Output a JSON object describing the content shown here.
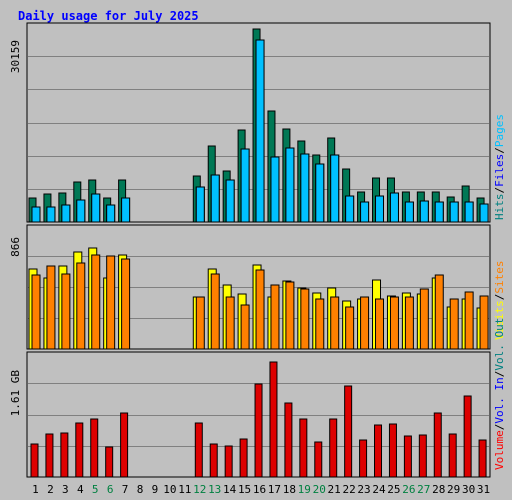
{
  "title": "Daily usage for July 2025",
  "chart_data": [
    {
      "type": "bar",
      "panel": "hits-files-pages",
      "max_label": "30159",
      "ylim": [
        0,
        30159
      ],
      "x": [
        "1",
        "2",
        "3",
        "4",
        "5",
        "6",
        "7",
        "8",
        "9",
        "10",
        "11",
        "12",
        "13",
        "14",
        "15",
        "16",
        "17",
        "18",
        "19",
        "20",
        "21",
        "22",
        "23",
        "24",
        "25",
        "26",
        "27",
        "28",
        "29",
        "30",
        "31"
      ],
      "legend": [
        {
          "text": "Hits",
          "color": "#008080"
        },
        {
          "text": "Files",
          "color": "#0000ff"
        },
        {
          "text": "Pages",
          "color": "#00c0ff"
        }
      ],
      "series": [
        {
          "name": "Hits",
          "color": "#007855",
          "values": [
            3700,
            4300,
            4500,
            6300,
            6600,
            3700,
            6600,
            0,
            0,
            0,
            0,
            7200,
            11800,
            8000,
            14300,
            30159,
            17400,
            14500,
            12700,
            10400,
            13200,
            8300,
            4700,
            6900,
            6900,
            4700,
            4700,
            4700,
            3900,
            5700,
            3800
          ]
        },
        {
          "name": "Files",
          "color": "#000080",
          "values": [
            2400,
            2300,
            2600,
            3500,
            4400,
            2600,
            3800,
            0,
            0,
            0,
            0,
            5500,
            7400,
            6600,
            11400,
            28500,
            10100,
            11600,
            10700,
            9100,
            10400,
            4100,
            3100,
            4100,
            4500,
            3100,
            3300,
            3200,
            3100,
            3200,
            2800
          ]
        },
        {
          "name": "Pages",
          "color": "#00c0ff",
          "values": [
            2400,
            2300,
            2600,
            3500,
            4400,
            2600,
            3800,
            0,
            0,
            0,
            0,
            5500,
            7400,
            6600,
            11400,
            28500,
            10100,
            11600,
            10700,
            9100,
            10400,
            4100,
            3100,
            4100,
            4500,
            3100,
            3300,
            3200,
            3100,
            3200,
            2800
          ]
        }
      ]
    },
    {
      "type": "bar",
      "panel": "visits-sites",
      "max_label": "866",
      "ylim": [
        0,
        866
      ],
      "legend": [
        {
          "text": "Visits",
          "color": "#ffff00"
        },
        {
          "text": "Sites",
          "color": "#ff8000"
        }
      ],
      "series": [
        {
          "name": "Visits",
          "color": "#ffff00",
          "values": [
            590,
            520,
            610,
            710,
            740,
            520,
            690,
            0,
            0,
            0,
            0,
            380,
            590,
            470,
            400,
            620,
            380,
            500,
            450,
            410,
            450,
            350,
            370,
            510,
            390,
            410,
            400,
            520,
            310,
            370,
            300
          ]
        },
        {
          "name": "Sites",
          "color": "#ff8000",
          "values": [
            540,
            610,
            550,
            630,
            690,
            680,
            660,
            0,
            0,
            0,
            0,
            380,
            550,
            380,
            320,
            580,
            470,
            490,
            440,
            370,
            380,
            310,
            380,
            370,
            380,
            380,
            440,
            540,
            370,
            420,
            390
          ]
        }
      ]
    },
    {
      "type": "bar",
      "panel": "volume",
      "max_label": "1.61 GB",
      "ylim": [
        0,
        1.61
      ],
      "legend": [
        {
          "text": "Volume",
          "color": "#ff0000"
        },
        {
          "text": "Vol. In",
          "color": "#0000ff"
        },
        {
          "text": "Vol. Out",
          "color": "#008080"
        }
      ],
      "series": [
        {
          "name": "Volume",
          "color": "#dd0000",
          "values": [
            0.44,
            0.58,
            0.6,
            0.73,
            0.78,
            0.4,
            0.86,
            0,
            0,
            0,
            0,
            0.73,
            0.44,
            0.42,
            0.52,
            1.26,
            1.56,
            1.0,
            0.79,
            0.47,
            0.78,
            1.23,
            0.5,
            0.7,
            0.72,
            0.56,
            0.57,
            0.86,
            0.58,
            1.1,
            0.5
          ]
        }
      ]
    }
  ],
  "weekend_days": [
    5,
    6,
    12,
    13,
    19,
    20,
    26,
    27
  ],
  "colors": {
    "weekday": "#000000",
    "weekend": "#008040"
  }
}
